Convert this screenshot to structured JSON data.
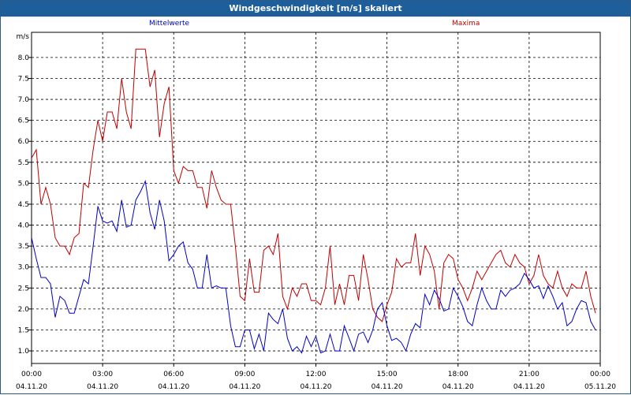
{
  "window": {
    "title": "Windgeschwindigkeit [m/s] skaliert"
  },
  "legend": {
    "mean_label": "Mittelwerte",
    "max_label": "Maxima"
  },
  "colors": {
    "titlebar": "#1e5f9b",
    "mean": "#0000c8",
    "max": "#c00000",
    "grid": "#000000"
  },
  "chart_data": {
    "type": "line",
    "title": "Windgeschwindigkeit [m/s] skaliert",
    "ylabel": "m/s",
    "ylim": [
      0.7,
      8.6
    ],
    "yticks": [
      "1.0",
      "1.5",
      "2.0",
      "2.5",
      "3.0",
      "3.5",
      "4.0",
      "4.5",
      "5.0",
      "5.5",
      "6.0",
      "6.5",
      "7.0",
      "7.5",
      "8.0"
    ],
    "xlim": [
      0,
      24
    ],
    "xticks": [
      {
        "time": "00:00",
        "date": "04.11.20"
      },
      {
        "time": "03:00",
        "date": "04.11.20"
      },
      {
        "time": "06:00",
        "date": "04.11.20"
      },
      {
        "time": "09:00",
        "date": "04.11.20"
      },
      {
        "time": "12:00",
        "date": "04.11.20"
      },
      {
        "time": "15:00",
        "date": "04.11.20"
      },
      {
        "time": "18:00",
        "date": "04.11.20"
      },
      {
        "time": "21:00",
        "date": "04.11.20"
      },
      {
        "time": "00:00",
        "date": "05.11.20"
      }
    ],
    "grid": true,
    "series": [
      {
        "name": "Mittelwerte",
        "x": [
          0,
          0.2,
          0.4,
          0.6,
          0.8,
          1.0,
          1.2,
          1.4,
          1.6,
          1.8,
          2.0,
          2.2,
          2.4,
          2.6,
          2.8,
          3.0,
          3.2,
          3.4,
          3.6,
          3.8,
          4.0,
          4.2,
          4.4,
          4.6,
          4.8,
          5.0,
          5.2,
          5.4,
          5.6,
          5.8,
          6.0,
          6.2,
          6.4,
          6.6,
          6.8,
          7.0,
          7.2,
          7.4,
          7.6,
          7.8,
          8.0,
          8.2,
          8.4,
          8.6,
          8.8,
          9.0,
          9.2,
          9.4,
          9.6,
          9.8,
          10.0,
          10.2,
          10.4,
          10.6,
          10.8,
          11.0,
          11.2,
          11.4,
          11.6,
          11.8,
          12.0,
          12.2,
          12.4,
          12.6,
          12.8,
          13.0,
          13.2,
          13.4,
          13.6,
          13.8,
          14.0,
          14.2,
          14.4,
          14.6,
          14.8,
          15.0,
          15.2,
          15.4,
          15.6,
          15.8,
          16.0,
          16.2,
          16.4,
          16.6,
          16.8,
          17.0,
          17.2,
          17.4,
          17.6,
          17.8,
          18.0,
          18.2,
          18.4,
          18.6,
          18.8,
          19.0,
          19.2,
          19.4,
          19.6,
          19.8,
          20.0,
          20.2,
          20.4,
          20.6,
          20.8,
          21.0,
          21.2,
          21.4,
          21.6,
          21.8,
          22.0,
          22.2,
          22.4,
          22.6,
          22.8,
          23.0,
          23.2,
          23.4,
          23.6,
          23.8
        ],
        "values": [
          3.7,
          3.2,
          2.75,
          2.75,
          2.6,
          1.8,
          2.3,
          2.2,
          1.9,
          1.9,
          2.3,
          2.7,
          2.6,
          3.5,
          4.45,
          4.1,
          4.05,
          4.1,
          3.85,
          4.6,
          3.95,
          4.0,
          4.6,
          4.8,
          5.05,
          4.3,
          3.9,
          4.6,
          4.1,
          3.15,
          3.3,
          3.5,
          3.6,
          3.1,
          2.95,
          2.5,
          2.5,
          3.3,
          2.5,
          2.55,
          2.5,
          2.5,
          1.6,
          1.1,
          1.1,
          1.5,
          1.5,
          1.05,
          1.4,
          1.0,
          1.9,
          1.75,
          1.65,
          2.0,
          1.3,
          1.0,
          1.1,
          0.95,
          1.35,
          1.1,
          1.35,
          0.95,
          1.0,
          1.4,
          1.0,
          1.0,
          1.6,
          1.3,
          1.0,
          1.4,
          1.45,
          1.2,
          1.5,
          2.0,
          2.15,
          1.6,
          1.25,
          1.3,
          1.2,
          1.0,
          1.4,
          1.65,
          1.55,
          2.35,
          2.1,
          2.45,
          2.25,
          1.95,
          2.0,
          2.5,
          2.3,
          2.05,
          1.7,
          1.6,
          2.1,
          2.5,
          2.2,
          2.0,
          2.0,
          2.45,
          2.3,
          2.45,
          2.5,
          2.6,
          2.85,
          2.7,
          2.5,
          2.55,
          2.25,
          2.55,
          2.3,
          2.0,
          2.15,
          1.6,
          1.7,
          2.0,
          2.2,
          2.15,
          1.7,
          1.5
        ],
        "color": "#0000c8"
      },
      {
        "name": "Maxima",
        "x": [
          0,
          0.2,
          0.4,
          0.6,
          0.8,
          1.0,
          1.2,
          1.4,
          1.6,
          1.8,
          2.0,
          2.2,
          2.4,
          2.6,
          2.8,
          3.0,
          3.2,
          3.4,
          3.6,
          3.8,
          4.0,
          4.2,
          4.4,
          4.6,
          4.8,
          5.0,
          5.2,
          5.4,
          5.6,
          5.8,
          6.0,
          6.2,
          6.4,
          6.6,
          6.8,
          7.0,
          7.2,
          7.4,
          7.6,
          7.8,
          8.0,
          8.2,
          8.4,
          8.6,
          8.8,
          9.0,
          9.2,
          9.4,
          9.6,
          9.8,
          10.0,
          10.2,
          10.4,
          10.6,
          10.8,
          11.0,
          11.2,
          11.4,
          11.6,
          11.8,
          12.0,
          12.2,
          12.4,
          12.6,
          12.8,
          13.0,
          13.2,
          13.4,
          13.6,
          13.8,
          14.0,
          14.2,
          14.4,
          14.6,
          14.8,
          15.0,
          15.2,
          15.4,
          15.6,
          15.8,
          16.0,
          16.2,
          16.4,
          16.6,
          16.8,
          17.0,
          17.2,
          17.4,
          17.6,
          17.8,
          18.0,
          18.2,
          18.4,
          18.6,
          18.8,
          19.0,
          19.2,
          19.4,
          19.6,
          19.8,
          20.0,
          20.2,
          20.4,
          20.6,
          20.8,
          21.0,
          21.2,
          21.4,
          21.6,
          21.8,
          22.0,
          22.2,
          22.4,
          22.6,
          22.8,
          23.0,
          23.2,
          23.4,
          23.6,
          23.8
        ],
        "values": [
          5.6,
          5.8,
          4.5,
          4.9,
          4.5,
          3.7,
          3.5,
          3.5,
          3.3,
          3.7,
          3.8,
          5.0,
          4.9,
          5.8,
          6.5,
          6.0,
          6.7,
          6.7,
          6.3,
          7.5,
          6.7,
          6.3,
          8.2,
          8.2,
          8.2,
          7.3,
          7.7,
          6.1,
          6.9,
          7.3,
          5.3,
          5.0,
          5.4,
          5.3,
          5.3,
          4.9,
          4.9,
          4.4,
          5.3,
          4.9,
          4.6,
          4.5,
          4.5,
          3.5,
          2.3,
          2.2,
          3.2,
          2.4,
          2.4,
          3.4,
          3.5,
          3.3,
          3.8,
          2.3,
          2.0,
          2.5,
          2.3,
          2.6,
          2.6,
          2.2,
          2.2,
          2.1,
          2.5,
          3.5,
          2.1,
          2.6,
          2.1,
          2.8,
          2.8,
          2.2,
          3.3,
          2.7,
          2.0,
          1.8,
          1.7,
          2.1,
          2.4,
          3.2,
          3.0,
          3.1,
          3.1,
          3.8,
          2.8,
          3.5,
          3.3,
          2.9,
          2.0,
          3.1,
          3.3,
          3.2,
          2.7,
          2.5,
          2.2,
          2.5,
          2.9,
          2.7,
          2.9,
          3.1,
          3.3,
          3.4,
          3.1,
          3.0,
          3.3,
          3.1,
          3.0,
          2.6,
          2.8,
          3.3,
          2.8,
          2.6,
          2.5,
          2.9,
          2.5,
          2.3,
          2.6,
          2.5,
          2.5,
          2.9,
          2.3,
          1.9
        ],
        "color": "#c00000"
      }
    ]
  }
}
